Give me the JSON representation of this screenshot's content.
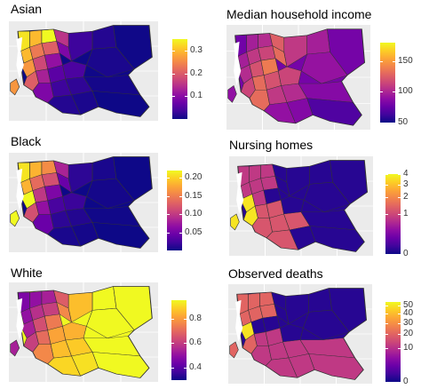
{
  "figure": {
    "panels": [
      {
        "title": "Asian",
        "ticks": [
          "0.3",
          "0.2",
          "0.1"
        ]
      },
      {
        "title": "Median household income",
        "ticks": [
          "150",
          "100",
          "50"
        ]
      },
      {
        "title": "Black",
        "ticks": [
          "0.20",
          "0.15",
          "0.10",
          "0.05"
        ]
      },
      {
        "title": "Nursing homes",
        "ticks": [
          "4",
          "3",
          "2",
          "1",
          "0"
        ]
      },
      {
        "title": "White",
        "ticks": [
          "0.8",
          "0.6",
          "0.4"
        ]
      },
      {
        "title": "Observed deaths",
        "ticks": [
          "50",
          "40",
          "30",
          "20",
          "10",
          "0"
        ]
      }
    ]
  },
  "chart_data": [
    {
      "type": "heatmap",
      "subtype": "choropleth-map",
      "title": "Asian",
      "colorscale": "plasma",
      "color_range": [
        0.0,
        0.35
      ],
      "legend_ticks": [
        0.3,
        0.2,
        0.1
      ],
      "legend_placement": "right"
    },
    {
      "type": "heatmap",
      "subtype": "choropleth-map",
      "title": "Median household income",
      "colorscale": "plasma",
      "color_range": [
        50,
        180
      ],
      "legend_ticks": [
        150,
        100,
        50
      ],
      "legend_placement": "right"
    },
    {
      "type": "heatmap",
      "subtype": "choropleth-map",
      "title": "Black",
      "colorscale": "plasma",
      "color_range": [
        0.0,
        0.22
      ],
      "legend_ticks": [
        0.2,
        0.15,
        0.1,
        0.05
      ],
      "legend_placement": "right"
    },
    {
      "type": "heatmap",
      "subtype": "choropleth-map",
      "title": "Nursing homes",
      "colorscale": "plasma",
      "color_range": [
        0,
        4
      ],
      "scale": "sqrt",
      "legend_ticks": [
        4,
        3,
        2,
        1,
        0
      ],
      "legend_placement": "right"
    },
    {
      "type": "heatmap",
      "subtype": "choropleth-map",
      "title": "White",
      "colorscale": "plasma",
      "color_range": [
        0.3,
        0.95
      ],
      "legend_ticks": [
        0.8,
        0.6,
        0.4
      ],
      "legend_placement": "right"
    },
    {
      "type": "heatmap",
      "subtype": "choropleth-map",
      "title": "Observed deaths",
      "colorscale": "plasma",
      "color_range": [
        0,
        55
      ],
      "scale": "sqrt",
      "legend_ticks": [
        50,
        40,
        30,
        20,
        10,
        0
      ],
      "legend_placement": "right"
    }
  ]
}
